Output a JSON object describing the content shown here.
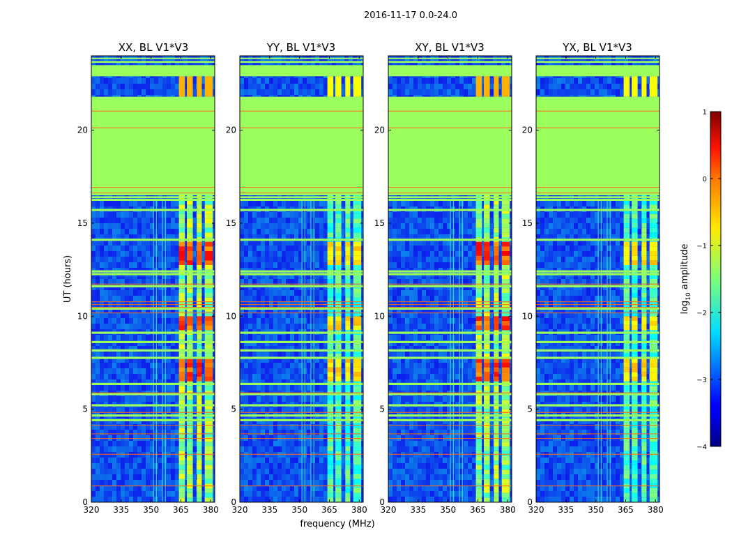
{
  "suptitle": "2016-11-17 0.0-24.0",
  "colors": {
    "flag_fill": "#9bff5e",
    "noise_base": "#1e46d6",
    "rfi_line": "#ff6a1a",
    "frame": "#000000"
  },
  "chart_data": [
    {
      "type": "heatmap",
      "title": "XX, BL V1*V3",
      "ylabel": "UT (hours)",
      "xlabel": "",
      "xlim": [
        320,
        382
      ],
      "ylim": [
        0,
        24
      ],
      "xticks": [
        {
          "v": 320,
          "label": "320"
        },
        {
          "v": 335,
          "label": "335"
        },
        {
          "v": 350,
          "label": "350"
        },
        {
          "v": 365,
          "label": "365"
        },
        {
          "v": 380,
          "label": "380"
        }
      ],
      "yticks": [
        {
          "v": 0,
          "label": "0"
        },
        {
          "v": 5,
          "label": "5"
        },
        {
          "v": 10,
          "label": "10"
        },
        {
          "v": 15,
          "label": "15"
        },
        {
          "v": 20,
          "label": "20"
        }
      ],
      "signal_level": "high"
    },
    {
      "type": "heatmap",
      "title": "YY, BL V1*V3",
      "ylabel": "",
      "xlabel": "frequency (MHz)",
      "xlim": [
        320,
        382
      ],
      "ylim": [
        0,
        24
      ],
      "xticks": [
        {
          "v": 320,
          "label": "320"
        },
        {
          "v": 335,
          "label": "335"
        },
        {
          "v": 350,
          "label": "350"
        },
        {
          "v": 365,
          "label": "365"
        },
        {
          "v": 380,
          "label": "380"
        }
      ],
      "yticks": [
        {
          "v": 0,
          "label": "0"
        },
        {
          "v": 5,
          "label": "5"
        },
        {
          "v": 10,
          "label": "10"
        },
        {
          "v": 15,
          "label": "15"
        },
        {
          "v": 20,
          "label": "20"
        }
      ],
      "signal_level": "medium"
    },
    {
      "type": "heatmap",
      "title": "XY, BL V1*V3",
      "ylabel": "",
      "xlabel": "",
      "xlim": [
        320,
        382
      ],
      "ylim": [
        0,
        24
      ],
      "xticks": [
        {
          "v": 320,
          "label": "320"
        },
        {
          "v": 335,
          "label": "335"
        },
        {
          "v": 350,
          "label": "350"
        },
        {
          "v": 365,
          "label": "365"
        },
        {
          "v": 380,
          "label": "380"
        }
      ],
      "yticks": [
        {
          "v": 0,
          "label": "0"
        },
        {
          "v": 5,
          "label": "5"
        },
        {
          "v": 10,
          "label": "10"
        },
        {
          "v": 15,
          "label": "15"
        },
        {
          "v": 20,
          "label": "20"
        }
      ],
      "signal_level": "high"
    },
    {
      "type": "heatmap",
      "title": "YX, BL V1*V3",
      "ylabel": "",
      "xlabel": "",
      "xlim": [
        320,
        382
      ],
      "ylim": [
        0,
        24
      ],
      "xticks": [
        {
          "v": 320,
          "label": "320"
        },
        {
          "v": 335,
          "label": "335"
        },
        {
          "v": 350,
          "label": "350"
        },
        {
          "v": 365,
          "label": "365"
        },
        {
          "v": 380,
          "label": "380"
        }
      ],
      "yticks": [
        {
          "v": 0,
          "label": "0"
        },
        {
          "v": 5,
          "label": "5"
        },
        {
          "v": 10,
          "label": "10"
        },
        {
          "v": 15,
          "label": "15"
        },
        {
          "v": 20,
          "label": "20"
        }
      ],
      "signal_level": "medium"
    }
  ],
  "colorbar": {
    "label_prefix": "log",
    "label_sub": "10",
    "label_suffix": " amplitude",
    "vmin": -4,
    "vmax": 1,
    "ticks": [
      {
        "v": 1,
        "label": "1"
      },
      {
        "v": 0,
        "label": "0"
      },
      {
        "v": -1,
        "label": "−1"
      },
      {
        "v": -2,
        "label": "−2"
      },
      {
        "v": -3,
        "label": "−3"
      },
      {
        "v": -4,
        "label": "−4"
      }
    ],
    "colormap": "jet"
  },
  "data_features": {
    "flagged_blocks_hours": [
      [
        16.5,
        21.8
      ],
      [
        22.9,
        23.5
      ],
      [
        23.62,
        23.72
      ],
      [
        23.82,
        23.9
      ],
      [
        16.35,
        16.45
      ]
    ],
    "flag_bands_hours": [
      4.35,
      4.6,
      5.15,
      5.75,
      6.3,
      7.7,
      8.1,
      8.55,
      9.05,
      10.35,
      11.55,
      12.2,
      12.35,
      14.05,
      15.65,
      16.2
    ],
    "rfi_lines_hours": [
      0.9,
      2.6,
      3.45,
      3.7,
      4.15,
      4.85,
      5.9,
      10.2,
      10.5,
      10.65,
      10.8,
      11.75,
      16.65,
      16.95,
      20.15,
      21.05
    ],
    "signal_channels_mhz": [
      [
        364.0,
        367.0
      ],
      [
        368.0,
        371.0
      ],
      [
        373.0,
        375.5
      ],
      [
        377.0,
        381.0
      ]
    ],
    "narrow_rfi_mhz": [
      351.0,
      352.5,
      355.5,
      357.0
    ],
    "strong_event_hours": [
      [
        12.6,
        14.0
      ],
      [
        6.4,
        7.6
      ],
      [
        9.2,
        9.8
      ]
    ]
  }
}
